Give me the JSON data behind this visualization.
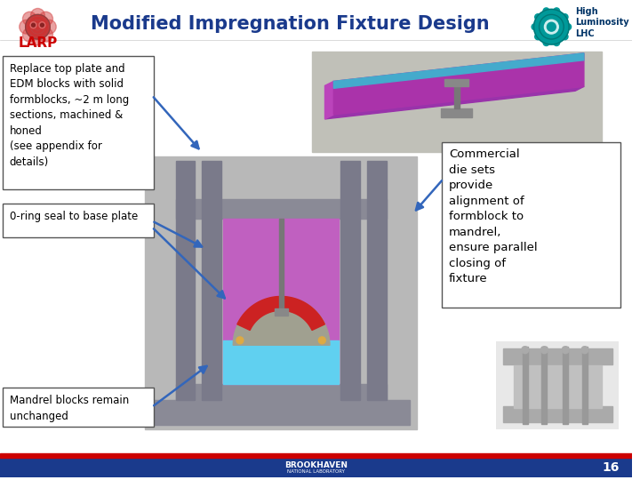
{
  "title": "Modified Impregnation Fixture Design",
  "title_color": "#1a3a8c",
  "title_fontsize": 15,
  "background_color": "#ffffff",
  "larp_text": "LARP",
  "larp_color": "#cc0000",
  "box1_text": "Replace top plate and\nEDM blocks with solid\nformblocks, ~2 m long\nsections, machined &\nhoned\n(see appendix for\ndetails)",
  "box2_text": "0-ring seal to base plate",
  "box3_text": "Mandrel blocks remain\nunchanged",
  "box4_text": "Commercial\ndie sets\nprovide\nalignment of\nformblock to\nmandrel,\nensure parallel\nclosing of\nfixture",
  "box_bg": "#ffffff",
  "box_border": "#555555",
  "arrow_color": "#3366bb",
  "footer_text": "BROOKHAVEN",
  "footer_subtext": "NATIONAL LABORATORY",
  "page_number": "16",
  "bottom_bar_blue": "#1a3a8c",
  "bottom_bar_red": "#cc0000",
  "slide_bg": "#ffffff",
  "fixture_bg": "#b8b8b8",
  "pillar_color": "#7a7a8a",
  "crossbar_color": "#8a8a96",
  "base_color": "#8a8a96",
  "inner_purple": "#c060c0",
  "inner_blue": "#60d0f0",
  "mandrel_color": "#a0a090",
  "red_wedge": "#cc2222",
  "needle_color": "#666666",
  "img3d_bg": "#c0c0b8",
  "purple_bar_top": "#9933aa",
  "purple_bar_side": "#bb44bb",
  "cyan_bar": "#44aacc",
  "die_bg": "#d0d0d0"
}
